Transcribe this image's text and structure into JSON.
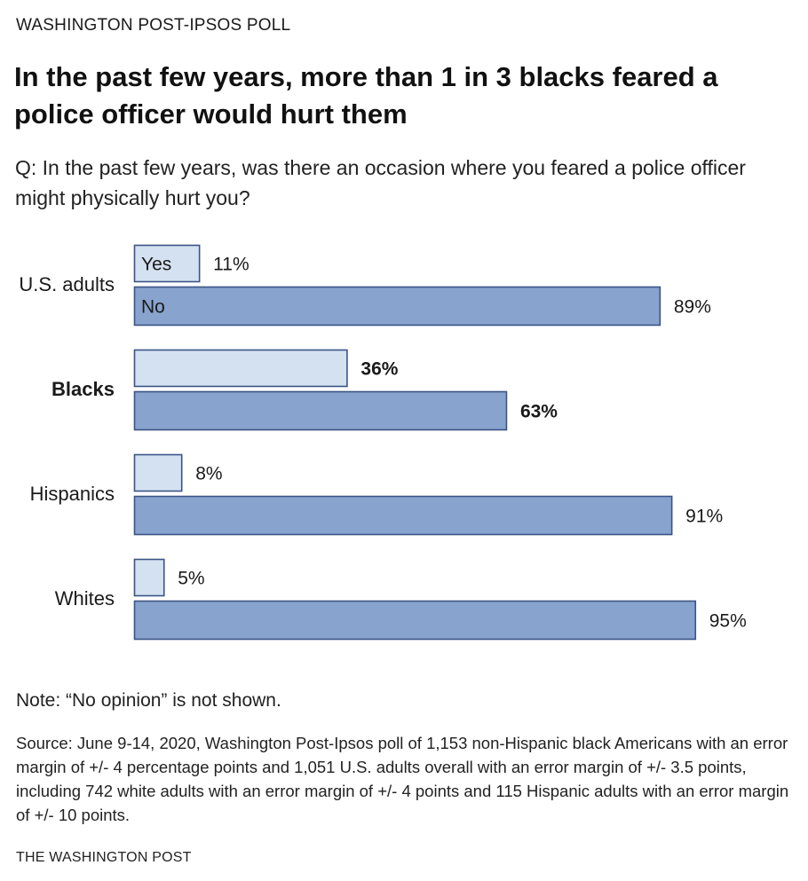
{
  "header": {
    "kicker": "WASHINGTON POST-IPSOS POLL",
    "title": "In the past few years, more than 1 in 3 blacks feared a police officer would hurt them",
    "question": "Q: In the past few years, was there an occasion where you feared a police officer might physically hurt you?"
  },
  "chart_data": {
    "type": "bar",
    "orientation": "horizontal",
    "categories": [
      "U.S. adults",
      "Blacks",
      "Hispanics",
      "Whites"
    ],
    "highlight_category": "Blacks",
    "series": [
      {
        "name": "Yes",
        "values": [
          11,
          36,
          8,
          5
        ],
        "value_labels": [
          "11%",
          "36%",
          "8%",
          "5%"
        ],
        "color": "#d4e1f0"
      },
      {
        "name": "No",
        "values": [
          89,
          63,
          91,
          95
        ],
        "value_labels": [
          "89%",
          "63%",
          "91%",
          "95%"
        ],
        "color": "#88a3cd"
      }
    ],
    "xlim": [
      0,
      100
    ],
    "grid": false,
    "legend": "inline in first bars"
  },
  "colors": {
    "bar_border": "#3a5485",
    "text": "#1a1a1a"
  },
  "footer": {
    "note": "Note: “No opinion” is not shown.",
    "source": "Source: June 9-14, 2020, Washington Post-Ipsos poll of 1,153 non-Hispanic black Americans with an error margin of +/- 4 percentage points and 1,051 U.S. adults overall with an error margin of +/- 3.5 points, including  742 white adults with an error margin of +/- 4 points and 115 Hispanic adults with an error margin of +/- 10 points.",
    "credit": "THE WASHINGTON POST"
  }
}
